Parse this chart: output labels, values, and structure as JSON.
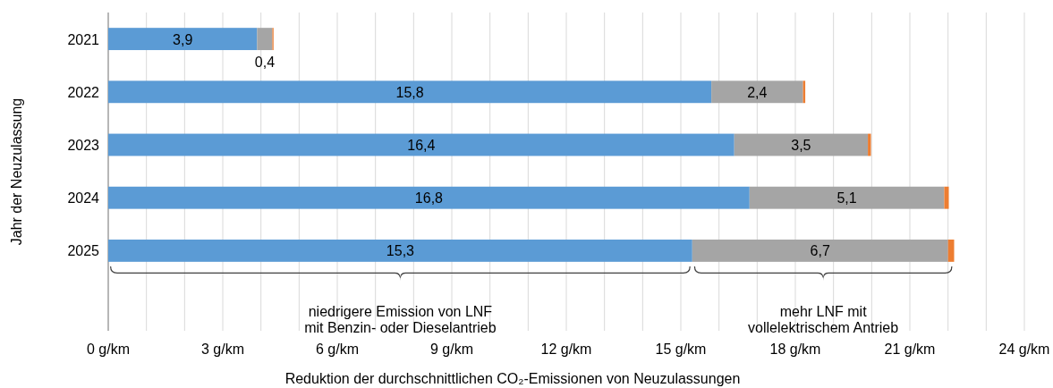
{
  "chart_data": {
    "type": "bar",
    "orientation": "horizontal",
    "stacked": true,
    "categories": [
      "2021",
      "2022",
      "2023",
      "2024",
      "2025"
    ],
    "series": [
      {
        "color": "#5b9bd5",
        "values": [
          3.9,
          15.8,
          16.4,
          16.8,
          15.3
        ],
        "value_labels": [
          "3,9",
          "15,8",
          "16,4",
          "16,8",
          "15,3"
        ]
      },
      {
        "color": "#a5a5a5",
        "values": [
          0.4,
          2.4,
          3.5,
          5.1,
          6.7
        ],
        "value_labels": [
          "0,4",
          "2,4",
          "3,5",
          "5,1",
          "6,7"
        ]
      },
      {
        "color": "#ed7d31",
        "values": [
          0.03,
          0.06,
          0.08,
          0.12,
          0.16
        ]
      }
    ],
    "xlim": [
      0,
      24
    ],
    "xticks": [
      {
        "value": 0,
        "label": "0 g/km"
      },
      {
        "value": 1,
        "label": null
      },
      {
        "value": 2,
        "label": null
      },
      {
        "value": 3,
        "label": "3 g/km"
      },
      {
        "value": 4,
        "label": null
      },
      {
        "value": 5,
        "label": null
      },
      {
        "value": 6,
        "label": "6 g/km"
      },
      {
        "value": 7,
        "label": null
      },
      {
        "value": 8,
        "label": null
      },
      {
        "value": 9,
        "label": "9 g/km"
      },
      {
        "value": 10,
        "label": null
      },
      {
        "value": 11,
        "label": null
      },
      {
        "value": 12,
        "label": "12 g/km"
      },
      {
        "value": 13,
        "label": null
      },
      {
        "value": 14,
        "label": null
      },
      {
        "value": 15,
        "label": "15 g/km"
      },
      {
        "value": 16,
        "label": null
      },
      {
        "value": 17,
        "label": null
      },
      {
        "value": 18,
        "label": "18 g/km"
      },
      {
        "value": 19,
        "label": null
      },
      {
        "value": 20,
        "label": null
      },
      {
        "value": 21,
        "label": "21 g/km"
      },
      {
        "value": 22,
        "label": null
      },
      {
        "value": 23,
        "label": null
      },
      {
        "value": 24,
        "label": "24 g/km"
      }
    ],
    "grid": "x",
    "xlabel": "Reduktion der durchschnittlichen CO₂-Emissionen von Neuzulassungen",
    "ylabel": "Jahr der Neuzulassung",
    "annotations": [
      "niedrigere Emission von LNF\nmit Benzin- oder Dieselantrieb",
      "mehr LNF mit\nvollelektrischem Antrieb"
    ]
  }
}
